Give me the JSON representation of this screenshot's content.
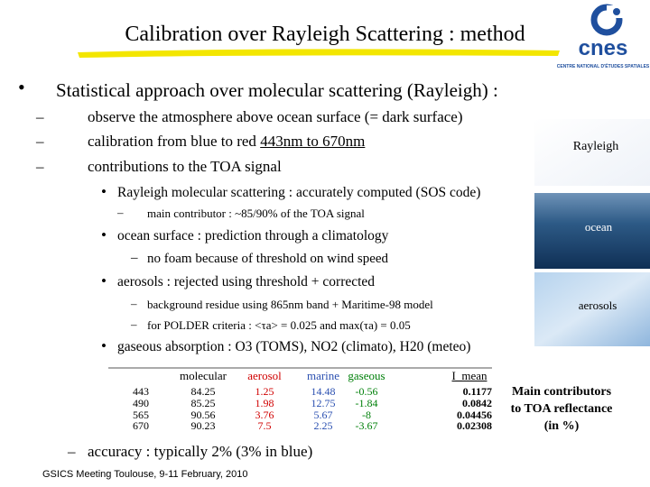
{
  "header": {
    "title": "Calibration over Rayleigh Scattering : method",
    "logo": {
      "name": "cnes",
      "tagline": "CENTRE NATIONAL D'ÉTUDES SPATIALES"
    }
  },
  "body": {
    "bullet": "Statistical approach over molecular scattering (Rayleigh) :",
    "items": [
      {
        "text": "observe the atmosphere above ocean surface (= dark surface)"
      },
      {
        "text": "calibration from blue to red ",
        "underlined": "443nm to 670nm"
      },
      {
        "text": "contributions to the TOA signal",
        "items": [
          {
            "text": "Rayleigh molecular scattering : accurately computed (SOS code)",
            "items": [
              "main contributor : ~85/90% of the TOA signal"
            ]
          },
          {
            "text": "ocean surface : prediction through a climatology",
            "items": [
              "no foam because of threshold on wind speed"
            ]
          },
          {
            "text": "aerosols : rejected using threshold + corrected",
            "items": [
              "background residue using 865nm band + Maritime-98 model",
              "for POLDER criteria : <τa> = 0.025 and max(τa) = 0.05"
            ]
          },
          {
            "text": "gaseous absorption : O3 (TOMS), NO2 (climato), H20 (meteo)"
          }
        ]
      }
    ],
    "closing": "accuracy : typically 2% (3% in blue)"
  },
  "table": {
    "columns": [
      "molecular",
      "aerosol",
      "marine",
      "gaseous",
      "I_mean"
    ],
    "rows": [
      [
        "443",
        84.25,
        1.25,
        14.48,
        -0.56,
        0.1177
      ],
      [
        "490",
        85.25,
        1.98,
        12.75,
        -1.84,
        0.0842
      ],
      [
        "565",
        90.56,
        3.76,
        5.67,
        -8,
        0.04456
      ],
      [
        "670",
        90.23,
        7.5,
        2.25,
        -3.67,
        0.02308
      ]
    ],
    "note": [
      "Main contributors",
      "to TOA reflectance",
      "(in %)"
    ]
  },
  "images": {
    "rayleigh": "Rayleigh",
    "ocean": "ocean",
    "aerosols": "aerosols"
  },
  "footer": "GSICS Meeting Toulouse, 9-11 February, 2010"
}
